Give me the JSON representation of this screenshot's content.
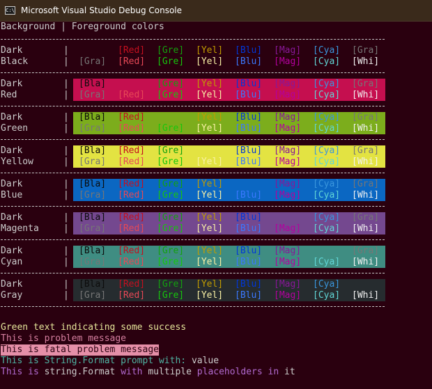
{
  "window": {
    "title": "Microsoft Visual Studio Debug Console",
    "icon_label": "C:\\",
    "icon": "console-app-icon"
  },
  "header": {
    "text": "Background | Foreground colors"
  },
  "colors": {
    "console_bg": "#2a000f",
    "default_text": "#cccccc"
  },
  "labels": [
    "Bla",
    "Red",
    "Gre",
    "Yel",
    "Blu",
    "Mag",
    "Cya",
    "Gra",
    "Gra",
    "Red",
    "Gre",
    "Yel",
    "Blu",
    "Mag",
    "Cya",
    "Whi"
  ],
  "palette": {
    "fg_dark": [
      "#0c0c0c",
      "#c50f1f",
      "#13a10e",
      "#c19c00",
      "#0037da",
      "#881798",
      "#3a96dd",
      "#767676"
    ],
    "fg_light": [
      "#767676",
      "#e74856",
      "#16c60c",
      "#f9f1a5",
      "#3b78ff",
      "#b4009e",
      "#61d6d6",
      "#f2f2f2"
    ]
  },
  "rows": [
    {
      "label1": "Dark",
      "label2": "Black",
      "bg": "",
      "hidden": [
        0
      ]
    },
    {
      "label1": "Dark",
      "label2": "Red",
      "bg": "#c50f4f",
      "hidden": [
        1
      ]
    },
    {
      "label1": "Dark",
      "label2": "Green",
      "bg": "#7cad1c",
      "hidden": [
        2
      ]
    },
    {
      "label1": "Dark",
      "label2": "Yellow",
      "bg": "#e3e342",
      "hidden": [
        3
      ]
    },
    {
      "label1": "Dark",
      "label2": "Blue",
      "bg": "#0b67c2",
      "hidden": [
        4
      ]
    },
    {
      "label1": "Dark",
      "label2": "Magenta",
      "bg": "#74488f",
      "hidden": [
        5
      ]
    },
    {
      "label1": "Dark",
      "label2": "Cyan",
      "bg": "#3f8d82",
      "hidden": [
        6
      ]
    },
    {
      "label1": "Dark",
      "label2": "Gray",
      "bg": "#262c2f",
      "hidden": [
        7
      ]
    }
  ],
  "messages": {
    "success": "Green text indicating some success",
    "problem": "This is problem message",
    "fatal": "This is fatal problem message",
    "format_prefix": "This is String.Format prompt with: ",
    "format_value": "value",
    "multi": [
      "This is ",
      "string.Format",
      " with ",
      "multiple",
      " placeholders",
      " in ",
      "it"
    ]
  }
}
